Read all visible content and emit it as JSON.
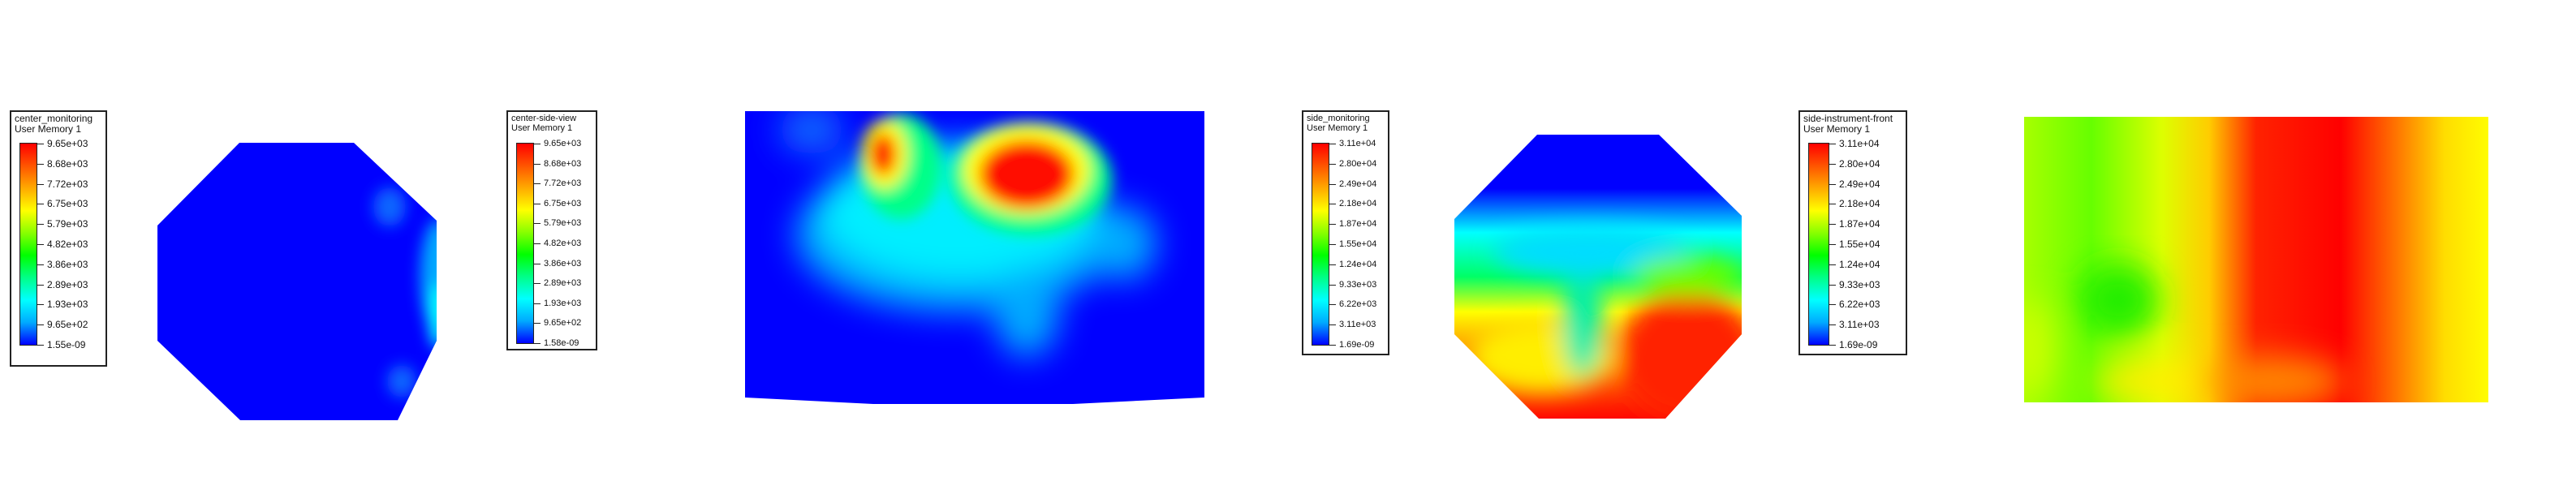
{
  "chart_data": [
    {
      "type": "heatmap",
      "title": "center_monitoring",
      "subtitle": "User Memory 1",
      "colorbar_ticks": [
        "9.65e+03",
        "8.68e+03",
        "7.72e+03",
        "6.75e+03",
        "5.79e+03",
        "4.82e+03",
        "3.86e+03",
        "2.89e+03",
        "1.93e+03",
        "9.65e+02",
        "1.55e-09"
      ],
      "range": [
        1.55e-09,
        9650
      ],
      "shape": "octagon",
      "field": "mostly minimum (blue) with a small rise near the right edge"
    },
    {
      "type": "heatmap",
      "title": "center-side-view",
      "subtitle": "User Memory 1",
      "colorbar_ticks": [
        "9.65e+03",
        "8.68e+03",
        "7.72e+03",
        "6.75e+03",
        "5.79e+03",
        "4.82e+03",
        "3.86e+03",
        "2.89e+03",
        "1.93e+03",
        "9.65e+02",
        "1.58e-09"
      ],
      "range": [
        1.58e-09,
        9650
      ],
      "shape": "trapezoid",
      "field": "two hot spots near the top over a cyan/green region, blue elsewhere"
    },
    {
      "type": "heatmap",
      "title": "side_monitoring",
      "subtitle": "User Memory 1",
      "colorbar_ticks": [
        "3.11e+04",
        "2.80e+04",
        "2.49e+04",
        "2.18e+04",
        "1.87e+04",
        "1.55e+04",
        "1.24e+04",
        "9.33e+03",
        "6.22e+03",
        "3.11e+03",
        "1.69e-09"
      ],
      "range": [
        1.69e-09,
        31100
      ],
      "shape": "octagon",
      "field": "blue top, V-shaped gradient, red bottom-right"
    },
    {
      "type": "heatmap",
      "title": "side-instrument-front",
      "subtitle": "User Memory 1",
      "colorbar_ticks": [
        "3.11e+04",
        "2.80e+04",
        "2.49e+04",
        "2.18e+04",
        "1.87e+04",
        "1.55e+04",
        "1.24e+04",
        "9.33e+03",
        "6.22e+03",
        "3.11e+03",
        "1.69e-09"
      ],
      "range": [
        1.69e-09,
        31100
      ],
      "shape": "rectangle",
      "field": "green left, red center, yellow right"
    }
  ],
  "colormap": [
    "#0000ff",
    "#00aaff",
    "#00ffff",
    "#00ff88",
    "#00ff00",
    "#88ff00",
    "#ffff00",
    "#ffaa00",
    "#ff5500",
    "#ff0000"
  ]
}
